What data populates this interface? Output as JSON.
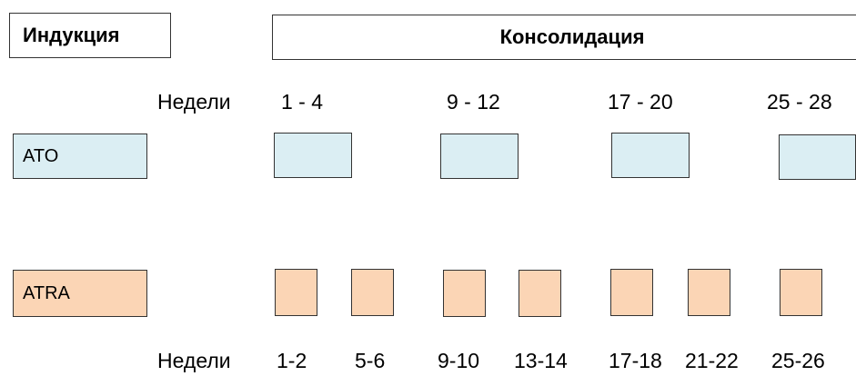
{
  "header": {
    "induction_label": "Индукция",
    "consolidation_label": "Консолидация"
  },
  "ato": {
    "label": "ATO",
    "weeks_caption": "Недели",
    "week_ranges": [
      "1 - 4",
      "9 - 12",
      "17 - 20",
      "25 - 28"
    ]
  },
  "atra": {
    "label": "ATRA",
    "weeks_caption": "Недели",
    "week_ranges": [
      "1-2",
      "5-6",
      "9-10",
      "13-14",
      "17-18",
      "21-22",
      "25-26"
    ]
  },
  "colors": {
    "ato_fill": "#dbeef3",
    "atra_fill": "#fbd5b5",
    "border": "#333333"
  }
}
